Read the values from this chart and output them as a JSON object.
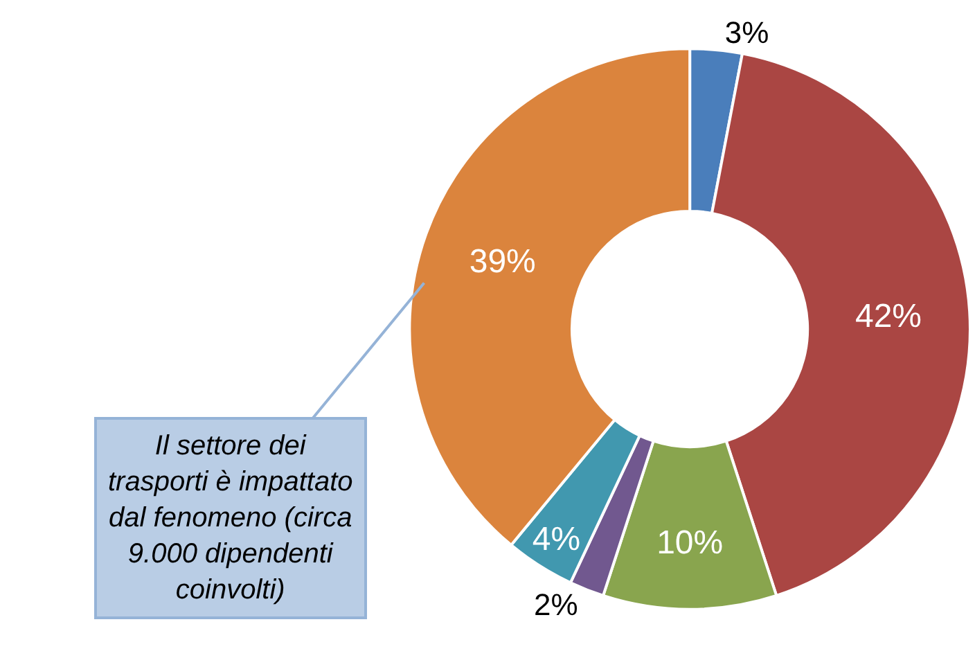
{
  "chart_data": {
    "type": "donut",
    "categories": [
      null,
      null,
      null,
      null,
      null,
      null
    ],
    "values": [
      3,
      42,
      10,
      2,
      4,
      39
    ],
    "value_labels": [
      "3%",
      "42%",
      "10%",
      "2%",
      "4%",
      "39%"
    ],
    "colors": [
      "#4a7ebb",
      "#aa4643",
      "#89a54e",
      "#71588f",
      "#4198af",
      "#db843d"
    ],
    "annotations": [
      "Il settore dei trasporti è impattato dal fenomeno (circa 9.000 dipendenti coinvolti)"
    ]
  }
}
